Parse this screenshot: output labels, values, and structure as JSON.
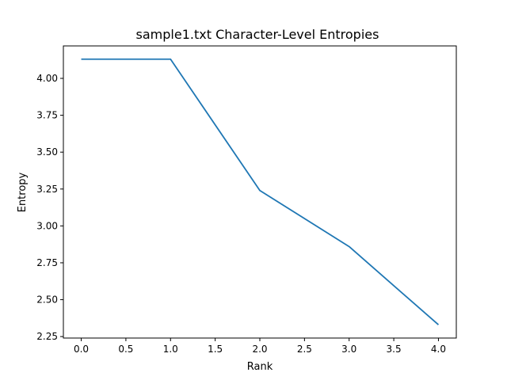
{
  "chart_data": {
    "type": "line",
    "title": "sample1.txt Character-Level Entropies",
    "xlabel": "Rank",
    "ylabel": "Entropy",
    "x": [
      0,
      1,
      2,
      3,
      4
    ],
    "series": [
      {
        "values": [
          4.13,
          4.13,
          3.24,
          2.86,
          2.33
        ],
        "color": "#1f77b4"
      }
    ],
    "xlim": [
      -0.2,
      4.2
    ],
    "ylim": [
      2.24,
      4.22
    ],
    "xticks": [
      0.0,
      0.5,
      1.0,
      1.5,
      2.0,
      2.5,
      3.0,
      3.5,
      4.0
    ],
    "xtick_labels": [
      "0.0",
      "0.5",
      "1.0",
      "1.5",
      "2.0",
      "2.5",
      "3.0",
      "3.5",
      "4.0"
    ],
    "yticks": [
      2.25,
      2.5,
      2.75,
      3.0,
      3.25,
      3.5,
      3.75,
      4.0
    ],
    "ytick_labels": [
      "2.25",
      "2.50",
      "2.75",
      "3.00",
      "3.25",
      "3.50",
      "3.75",
      "4.00"
    ],
    "grid": false,
    "legend": "none"
  }
}
